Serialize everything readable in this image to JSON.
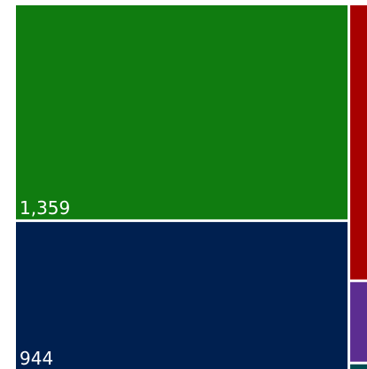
{
  "chart_data": {
    "type": "treemap",
    "values": [
      1359,
      944,
      101,
      30,
      3
    ],
    "value_labels": [
      "1,359",
      "944",
      null,
      null,
      null
    ],
    "colors": [
      "#107c10",
      "#002050",
      "#a80000",
      "#5c2d91",
      "#004b50"
    ]
  }
}
